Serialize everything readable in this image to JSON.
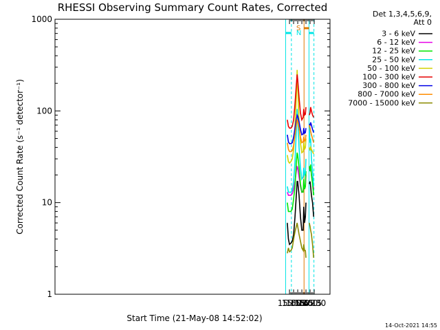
{
  "chart_data": {
    "type": "line",
    "title": "RHESSI Observing Summary Count Rates, Corrected",
    "xlabel": "Start Time (21-May-08 14:52:02)",
    "ylabel": "Corrected Count Rate (s⁻¹ detector⁻¹)",
    "y_scale": "log",
    "ylim": [
      1,
      1000
    ],
    "xlim_minutes": [
      46.5,
      1047.5
    ],
    "x_tick_labels": [
      "15:00",
      "15:15",
      "15:30",
      "15:45",
      "16:00",
      "16:15",
      "16:30"
    ],
    "y_tick_labels": [
      "1",
      "10",
      "100",
      "1000"
    ],
    "legend_header": [
      "Det 1,3,4,5,6,9,",
      "Att 0"
    ],
    "legend_placement": "right",
    "footer": "14-Oct-2021 14:55",
    "annotations": [
      {
        "text": "N",
        "color": "#00e5e5"
      },
      {
        "text": "S",
        "color": "#e07800"
      }
    ],
    "night_intervals": [
      [
        "14:46",
        "15:07"
      ],
      [
        "16:11",
        "16:29"
      ]
    ],
    "saa_interval": [
      "15:53",
      "16:11"
    ],
    "data_gap": [
      "16:00",
      "16:12"
    ],
    "series": [
      {
        "name": "3 - 6 keV",
        "color": "#000000"
      },
      {
        "name": "6 - 12 keV",
        "color": "#e600e6"
      },
      {
        "name": "12 - 25 keV",
        "color": "#00e600"
      },
      {
        "name": "25 - 50 keV",
        "color": "#00e6e6"
      },
      {
        "name": "50 - 100 keV",
        "color": "#d2d200"
      },
      {
        "name": "100 - 300 keV",
        "color": "#e60000"
      },
      {
        "name": "300 - 800 keV",
        "color": "#0000e6"
      },
      {
        "name": "800 - 7000 keV",
        "color": "#ff8c00"
      },
      {
        "name": "7000 - 15000 keV",
        "color": "#8b8b00"
      }
    ],
    "series_data": {
      "times": [
        "14:52",
        "14:56",
        "15:00",
        "15:05",
        "15:10",
        "15:15",
        "15:20",
        "15:25",
        "15:28",
        "15:30",
        "15:35",
        "15:40",
        "15:45",
        "15:50",
        "15:52",
        "15:55",
        "15:58",
        "16:00",
        "16:12",
        "16:15",
        "16:17",
        "16:20",
        "16:24",
        "16:28"
      ],
      "values": [
        [
          6,
          4,
          3.5,
          3.6,
          3.8,
          4.5,
          7,
          12,
          17,
          17,
          12,
          7,
          5,
          5,
          9,
          6,
          7,
          10,
          16,
          17,
          15,
          12,
          10,
          7
        ],
        [
          13,
          12,
          12,
          12,
          12.5,
          14,
          17,
          22,
          25,
          24,
          19,
          15,
          13,
          13.5,
          17,
          14,
          15,
          20,
          24,
          22,
          25,
          20,
          17,
          14
        ],
        [
          10,
          8,
          8,
          8,
          8.5,
          11,
          15,
          27,
          35,
          33,
          24,
          16,
          13,
          13,
          18,
          14,
          15,
          22,
          25,
          22,
          26,
          20,
          16,
          12
        ],
        [
          15,
          13,
          13,
          13,
          13.5,
          17,
          28,
          60,
          105,
          80,
          40,
          24,
          18,
          19,
          24,
          20,
          21,
          30,
          70,
          45,
          50,
          30,
          22,
          15
        ],
        [
          33,
          28,
          27,
          28,
          30,
          38,
          70,
          140,
          280,
          190,
          75,
          45,
          35,
          36,
          45,
          38,
          40,
          50,
          40,
          37,
          40,
          38,
          36,
          34
        ],
        [
          80,
          68,
          65,
          65,
          68,
          80,
          120,
          190,
          250,
          220,
          140,
          95,
          80,
          85,
          105,
          90,
          92,
          110,
          90,
          95,
          110,
          100,
          90,
          85
        ],
        [
          55,
          46,
          44,
          44,
          45,
          52,
          65,
          80,
          90,
          88,
          76,
          63,
          55,
          56,
          65,
          57,
          58,
          65,
          72,
          70,
          75,
          70,
          63,
          58
        ],
        [
          45,
          38,
          36,
          36,
          37,
          42,
          55,
          70,
          80,
          78,
          65,
          52,
          45,
          46,
          52,
          47,
          48,
          55,
          70,
          65,
          60,
          55,
          50,
          45
        ],
        [
          2.8,
          3.2,
          2.9,
          3,
          3.2,
          4,
          4.8,
          5.5,
          6,
          5.5,
          4.5,
          3.8,
          3.2,
          3,
          3.5,
          3,
          3,
          2.5,
          6,
          5.5,
          5,
          4.5,
          3.5,
          2.5
        ]
      ]
    }
  }
}
